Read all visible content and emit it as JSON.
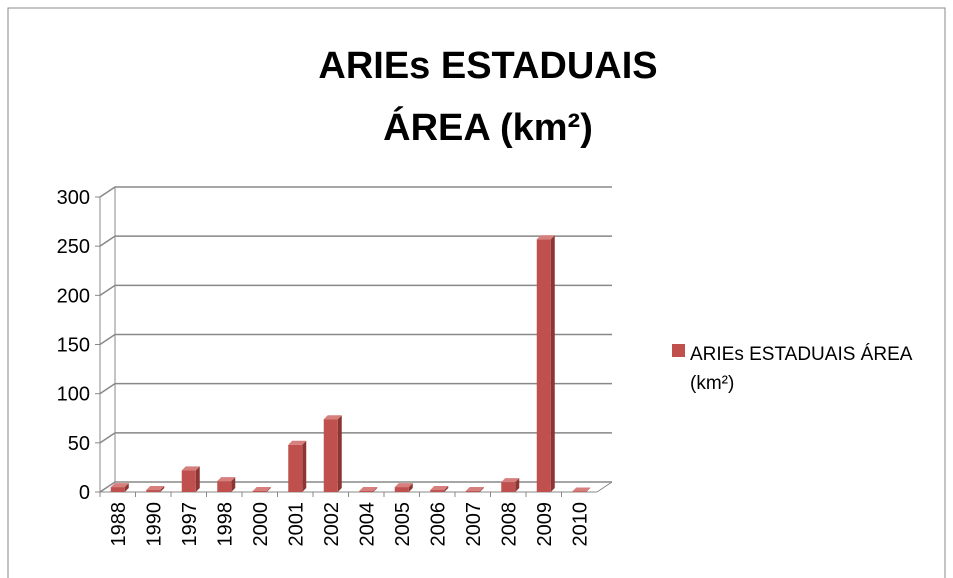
{
  "chart_data": {
    "type": "bar",
    "title": [
      "ARIEs ESTADUAIS",
      "ÁREA (km²)"
    ],
    "categories": [
      "1988",
      "1990",
      "1997",
      "1998",
      "2000",
      "2001",
      "2002",
      "2004",
      "2005",
      "2006",
      "2007",
      "2008",
      "2009",
      "2010"
    ],
    "series": [
      {
        "name": "ARIEs ESTADUAIS ÁREA (km²)",
        "color": "#c0504d",
        "values": [
          5,
          2,
          22,
          11,
          1,
          48,
          74,
          1,
          5,
          2,
          1,
          10,
          257,
          0.5
        ]
      }
    ],
    "ylim": [
      0,
      300
    ],
    "yticks": [
      0,
      50,
      100,
      150,
      200,
      250,
      300
    ],
    "grid": true,
    "legend": "right"
  }
}
